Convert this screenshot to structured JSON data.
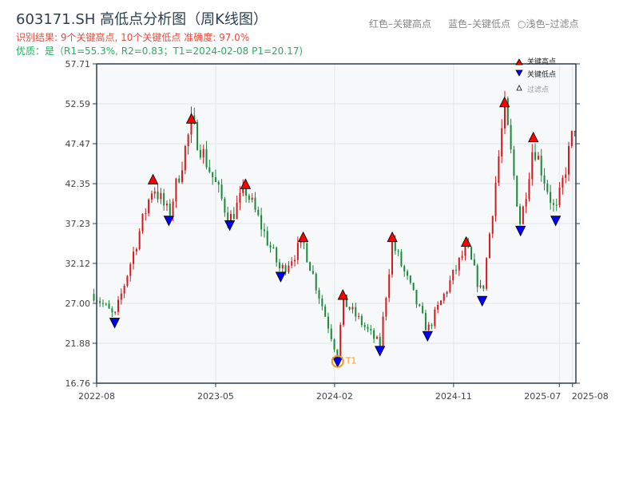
{
  "header": {
    "title": "603171.SH 高低点分析图（周K线图）",
    "result_line": "识别结果: 9个关键高点, 10个关键低点  准确度: 97.0%",
    "quality_line": "优质：是（R1=55.3%, R2=0.83；T1=2024-02-08 P1=20.17)",
    "legend_red": "红色–关键高点",
    "legend_blue": "蓝色–关键低点",
    "legend_filtered": "○浅色–过滤点"
  },
  "colors": {
    "up": "#d7191c",
    "down": "#1a8a3a",
    "high_marker": "#ff0000",
    "low_marker": "#0000ff",
    "t1": "#f39c12",
    "axis": "#2c3e50",
    "plot_bg": "#f6f8fa"
  },
  "chart_data": {
    "type": "candlestick",
    "title": "603171.SH 高低点分析图（周K线图）",
    "ylim": [
      16.76,
      57.71
    ],
    "y_ticks": [
      "57.71",
      "52.59",
      "47.47",
      "42.35",
      "37.23",
      "32.12",
      "27.00",
      "21.88",
      "16.76"
    ],
    "x_ticks": [
      "2022-08",
      "2023-05",
      "2024-02",
      "2024-11",
      "2025-07",
      "2025-08"
    ],
    "x_range": [
      "2022-08-01",
      "2025-08-10"
    ],
    "legend": {
      "placement": "top-right",
      "entries": [
        "关键高点",
        "关键低点",
        "过滤点"
      ]
    },
    "start": {
      "date": "2022-07-25",
      "price": 28.2
    },
    "end": {
      "date": "2025-08-08",
      "price": 50.5
    },
    "key_highs": [
      {
        "date": "2022-12-09",
        "price": 42.2
      },
      {
        "date": "2023-03-06",
        "price": 50.0
      },
      {
        "date": "2023-07-09",
        "price": 41.6
      },
      {
        "date": "2023-11-20",
        "price": 34.8
      },
      {
        "date": "2024-02-20",
        "price": 27.4
      },
      {
        "date": "2024-06-12",
        "price": 34.8
      },
      {
        "date": "2024-11-30",
        "price": 34.2
      },
      {
        "date": "2025-02-27",
        "price": 52.1
      },
      {
        "date": "2025-05-02",
        "price": 47.6
      }
    ],
    "key_lows": [
      {
        "date": "2022-09-12",
        "price": 25.2
      },
      {
        "date": "2023-01-15",
        "price": 38.3
      },
      {
        "date": "2023-06-03",
        "price": 37.7
      },
      {
        "date": "2023-09-29",
        "price": 31.1
      },
      {
        "date": "2024-02-08",
        "price": 20.17
      },
      {
        "date": "2024-05-14",
        "price": 21.6
      },
      {
        "date": "2024-09-02",
        "price": 23.5
      },
      {
        "date": "2025-01-06",
        "price": 28.0
      },
      {
        "date": "2025-04-03",
        "price": 37.0
      },
      {
        "date": "2025-06-23",
        "price": 38.3
      }
    ],
    "annotation": {
      "label": "T1",
      "date": "2024-02-08",
      "price": 20.17
    }
  }
}
